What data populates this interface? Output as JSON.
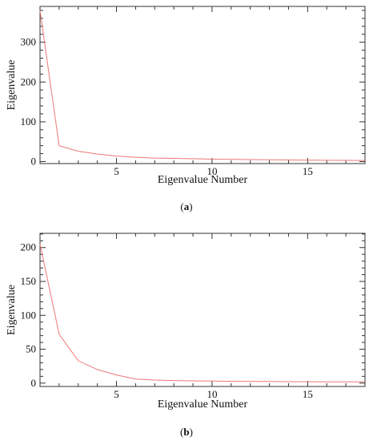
{
  "chart_data": [
    {
      "type": "line",
      "panel_label": "a",
      "xlabel": "Eigenvalue Number",
      "ylabel": "Eigenvalue",
      "xlim": [
        1,
        18
      ],
      "ylim": [
        -5,
        390
      ],
      "xticks": [
        5,
        10,
        15
      ],
      "yticks": [
        0,
        100,
        200,
        300
      ],
      "grid": false,
      "series": [
        {
          "color": "#ee7777",
          "x": [
            1,
            2,
            3,
            4,
            5,
            6,
            7,
            8,
            9,
            10,
            11,
            12,
            13,
            14,
            15,
            16,
            17,
            18
          ],
          "y": [
            380,
            40,
            26,
            19,
            14,
            11,
            9,
            8,
            7,
            6,
            5.5,
            5,
            4.5,
            4,
            3.5,
            3.2,
            3,
            2.8
          ]
        }
      ]
    },
    {
      "type": "line",
      "panel_label": "b",
      "xlabel": "Eigenvalue Number",
      "ylabel": "Eigenvalue",
      "xlim": [
        1,
        18
      ],
      "ylim": [
        -5,
        221
      ],
      "xticks": [
        5,
        10,
        15
      ],
      "yticks": [
        0,
        50,
        100,
        150,
        200
      ],
      "grid": false,
      "series": [
        {
          "color": "#ee7777",
          "x": [
            1,
            2,
            3,
            4,
            5,
            6,
            7,
            8,
            9,
            10,
            11,
            12,
            13,
            14,
            15,
            16,
            17,
            18
          ],
          "y": [
            205,
            72,
            33,
            20,
            12,
            6,
            4.5,
            3.8,
            3.3,
            3,
            2.7,
            2.5,
            2.3,
            2.1,
            2,
            1.9,
            1.8,
            1.7
          ]
        }
      ]
    }
  ]
}
